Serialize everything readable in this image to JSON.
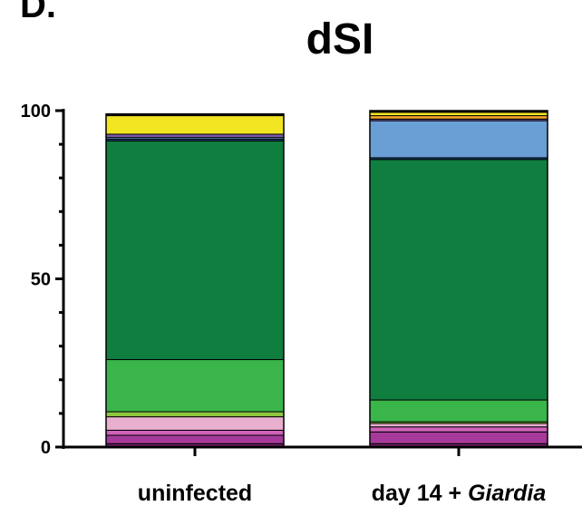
{
  "panel_label": "D.",
  "chart_data": {
    "type": "bar",
    "stacked": true,
    "title": "dSI",
    "xlabel": "",
    "ylabel": "",
    "ylim": [
      0,
      100
    ],
    "yticks": [
      0,
      50,
      100
    ],
    "categories": [
      {
        "prefix": "uninfected",
        "italic": ""
      },
      {
        "prefix": "day 14 + ",
        "italic": "Giardia"
      }
    ],
    "series": [
      {
        "color": "#7a1f6e",
        "values": [
          1,
          1
        ]
      },
      {
        "color": "#a63a9a",
        "values": [
          2.5,
          3.5
        ]
      },
      {
        "color": "#cf62b8",
        "values": [
          1.5,
          1.5
        ]
      },
      {
        "color": "#e9afcf",
        "values": [
          4,
          1
        ]
      },
      {
        "color": "#8dc63f",
        "values": [
          1.5,
          0.5
        ]
      },
      {
        "color": "#39b54a",
        "values": [
          15.5,
          6.5
        ]
      },
      {
        "color": "#0f7e3f",
        "values": [
          65,
          71.5
        ]
      },
      {
        "color": "#1c4f8a",
        "values": [
          0.5,
          0.5
        ]
      },
      {
        "color": "#6a9fd6",
        "values": [
          0.5,
          11
        ]
      },
      {
        "color": "#7b5aa6",
        "values": [
          1,
          0.5
        ]
      },
      {
        "color": "#f5a623",
        "values": [
          0,
          1
        ]
      },
      {
        "color": "#f2e521",
        "values": [
          5.5,
          1
        ]
      },
      {
        "color": "#231f20",
        "values": [
          0.5,
          0.5
        ]
      }
    ]
  }
}
